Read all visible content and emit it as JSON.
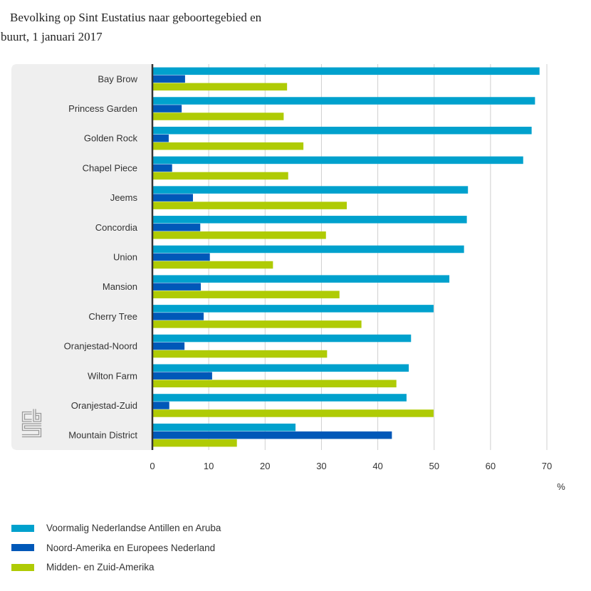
{
  "logo": {
    "icon": "cbs-logo"
  },
  "colors": {
    "panel": "#efefef",
    "grid": "#d0d0d0",
    "axis": "#333333",
    "text": "#333333"
  },
  "chart_data": {
    "type": "bar",
    "orientation": "horizontal",
    "title": [
      "Bevolking op Sint Eustatius naar geboortegebied en",
      "buurt, 1 januari 2017"
    ],
    "xlabel": "%",
    "xlim": [
      0,
      70
    ],
    "xticks": [
      0,
      10,
      20,
      30,
      40,
      50,
      60,
      70
    ],
    "grid": true,
    "legend": "bottom-left",
    "categories": [
      "Bay Brow",
      "Princess Garden",
      "Golden Rock",
      "Chapel Piece",
      "Jeems",
      "Concordia",
      "Union",
      "Mansion",
      "Cherry Tree",
      "Oranjestad-Noord",
      "Wilton Farm",
      "Oranjestad-Zuid",
      "Mountain District"
    ],
    "series": [
      {
        "name": "Voormalig Nederlandse Antillen en Aruba",
        "color": "#00a1cd",
        "values": [
          68.7,
          67.9,
          67.3,
          65.8,
          56.0,
          55.8,
          55.3,
          52.7,
          49.9,
          45.9,
          45.5,
          45.1,
          25.4
        ]
      },
      {
        "name": "Noord-Amerika en Europees Nederland",
        "color": "#0058b8",
        "values": [
          5.8,
          5.2,
          2.9,
          3.5,
          7.2,
          8.5,
          10.2,
          8.6,
          9.1,
          5.7,
          10.6,
          3.0,
          42.5
        ]
      },
      {
        "name": "Midden- en Zuid-Amerika",
        "color": "#afcb05",
        "values": [
          23.9,
          23.3,
          26.8,
          24.1,
          34.5,
          30.8,
          21.4,
          33.2,
          37.1,
          31.0,
          43.3,
          49.9,
          15.0
        ]
      }
    ]
  }
}
